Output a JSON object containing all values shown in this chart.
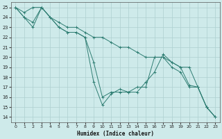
{
  "xlabel": "Humidex (Indice chaleur)",
  "xlim": [
    -0.5,
    23.5
  ],
  "ylim": [
    13.5,
    25.5
  ],
  "xticks": [
    0,
    1,
    2,
    3,
    4,
    5,
    6,
    7,
    8,
    9,
    10,
    11,
    12,
    13,
    14,
    15,
    16,
    17,
    18,
    19,
    20,
    21,
    22,
    23
  ],
  "yticks": [
    14,
    15,
    16,
    17,
    18,
    19,
    20,
    21,
    22,
    23,
    24,
    25
  ],
  "bg_color": "#ceeaea",
  "grid_color": "#aed0d0",
  "line_color": "#2e7d72",
  "series": [
    [
      25,
      24.5,
      25,
      25,
      24,
      23.5,
      23,
      23,
      22.5,
      22,
      22,
      21.5,
      21,
      21,
      20.5,
      20,
      20,
      20,
      19.5,
      19,
      19,
      17,
      15,
      14
    ],
    [
      25,
      24,
      23,
      25,
      24,
      23,
      22.5,
      22.5,
      22,
      19.5,
      16,
      16.5,
      16.5,
      16.5,
      17,
      17,
      20,
      20,
      19,
      18.5,
      17,
      17,
      15,
      14
    ],
    [
      25,
      24,
      23.5,
      25,
      24,
      23,
      22.5,
      22.5,
      22,
      17.5,
      15.2,
      16.3,
      16.8,
      16.5,
      16.5,
      17.5,
      18.5,
      20.3,
      19.5,
      19,
      17.2,
      17,
      15,
      14
    ]
  ]
}
